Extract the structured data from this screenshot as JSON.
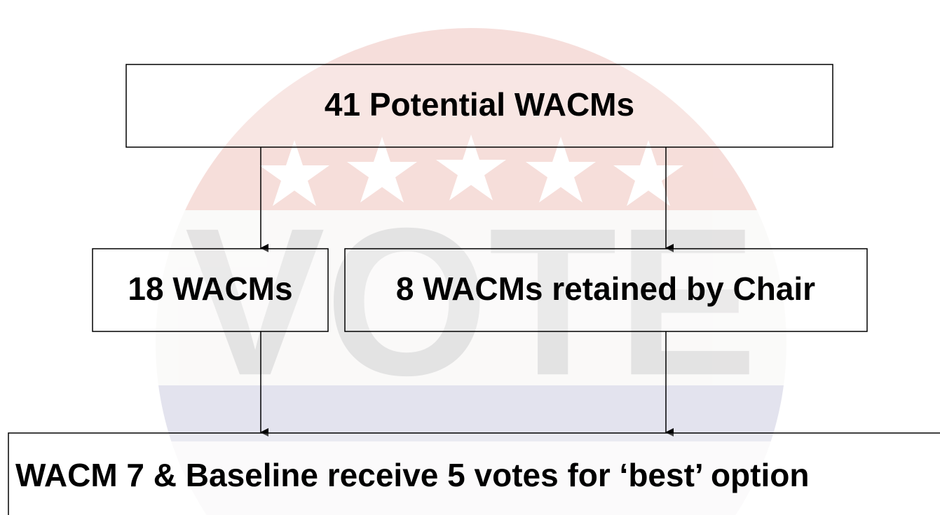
{
  "nodes": [
    {
      "label": "41 Potential WACMs"
    },
    {
      "label": "18 WACMs"
    },
    {
      "label": "8 WACMs retained by Chair"
    },
    {
      "label": "WACM 7 & Baseline receive 5 votes for ‘best’ option"
    }
  ]
}
